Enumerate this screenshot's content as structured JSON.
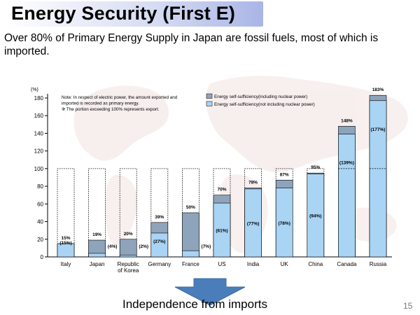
{
  "slide": {
    "title": "Energy Security (First E)",
    "subtitle": " Over 80% of Primary Energy Supply in Japan are fossil fuels, most of which is imported.",
    "bottom_text": "Independence from imports",
    "page_number": "15",
    "arrow_icon": "down-arrow-icon"
  },
  "chart_data": {
    "type": "bar",
    "yunit": "(%)",
    "ylim": [
      0,
      180
    ],
    "yticks": [
      0,
      20,
      40,
      60,
      80,
      100,
      120,
      140,
      160,
      180
    ],
    "reference_line": 100,
    "note": [
      "Note: In respect of electric power, the amount exported and",
      "imported is recorded as primary energy.",
      "※ The portion exceeding 100% represents export."
    ],
    "legend": [
      {
        "name": "Energy self-sufficiency(including nuclear power)",
        "color": "#8ea4ba"
      },
      {
        "name": "Energy self-sufficiency(not including nuclear power)",
        "color": "#a9d4f4"
      }
    ],
    "categories": [
      "Italy",
      "Japan",
      "Republic of Korea",
      "Germany",
      "France",
      "US",
      "India",
      "UK",
      "China",
      "Canada",
      "Russia"
    ],
    "category_lines": [
      [
        "Italy"
      ],
      [
        "Japan"
      ],
      [
        "Republic",
        "of Korea"
      ],
      [
        "Germany"
      ],
      [
        "France"
      ],
      [
        "US"
      ],
      [
        "India"
      ],
      [
        "UK"
      ],
      [
        "China"
      ],
      [
        "Canada"
      ],
      [
        "Russia"
      ]
    ],
    "series": [
      {
        "name": "Energy self-sufficiency(including nuclear power)",
        "values": [
          15,
          19,
          20,
          39,
          50,
          70,
          78,
          87,
          95,
          148,
          183
        ]
      },
      {
        "name": "Energy self-sufficiency(not including nuclear power)",
        "values": [
          15,
          4,
          2,
          27,
          7,
          61,
          77,
          78,
          94,
          139,
          177
        ]
      }
    ],
    "labels_total": [
      "15%",
      "19%",
      "20%",
      "39%",
      "50%",
      "70%",
      "78%",
      "87%",
      "95%",
      "148%",
      "183%"
    ],
    "labels_excl": [
      "(15%)",
      "(4%)",
      "(2%)",
      "(27%)",
      "(7%)",
      "(61%)",
      "(77%)",
      "(78%)",
      "(94%)",
      "(139%)",
      "(177%)"
    ],
    "colors": {
      "nuclear": "#8ea4ba",
      "non_nuclear": "#a9d4f4",
      "highlight": "#5f7385",
      "map": "#f2e3e1"
    }
  }
}
